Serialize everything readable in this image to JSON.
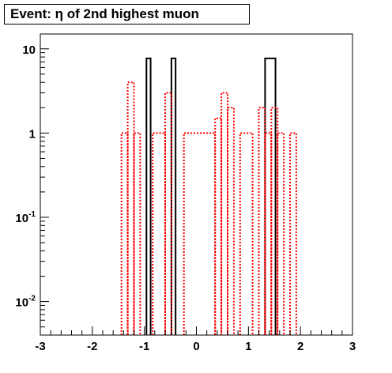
{
  "chart_data": {
    "type": "histogram",
    "title": "Event: η of 2nd highest muon",
    "xlabel": "",
    "ylabel": "",
    "xlim": [
      -3,
      3
    ],
    "ylim": [
      0.004,
      15
    ],
    "y_scale": "log",
    "grid": false,
    "x_ticks": [
      {
        "value": -3,
        "label": "-3"
      },
      {
        "value": -2,
        "label": "-2"
      },
      {
        "value": -1,
        "label": "-1"
      },
      {
        "value": 0,
        "label": "0"
      },
      {
        "value": 1,
        "label": "1"
      },
      {
        "value": 2,
        "label": "2"
      },
      {
        "value": 3,
        "label": "3"
      }
    ],
    "y_ticks": [
      {
        "value": 10,
        "base": "10",
        "exp": ""
      },
      {
        "value": 1,
        "base": "1",
        "exp": ""
      },
      {
        "value": 0.1,
        "base": "10",
        "exp": "-1"
      },
      {
        "value": 0.01,
        "base": "10",
        "exp": "-2"
      }
    ],
    "series": [
      {
        "color": "#000000",
        "style": "solid",
        "bins": [
          {
            "x0": -0.96,
            "x1": -0.88,
            "y": 7.7
          },
          {
            "x0": -0.48,
            "x1": -0.4,
            "y": 7.7
          },
          {
            "x0": 1.32,
            "x1": 1.52,
            "y": 7.7
          }
        ]
      },
      {
        "color": "#ff0000",
        "style": "dotted",
        "bins": [
          {
            "x0": -1.44,
            "x1": -1.32,
            "y": 1
          },
          {
            "x0": -1.32,
            "x1": -1.2,
            "y": 4
          },
          {
            "x0": -1.2,
            "x1": -1.08,
            "y": 1
          },
          {
            "x0": -0.84,
            "x1": -0.6,
            "y": 1
          },
          {
            "x0": -0.6,
            "x1": -0.48,
            "y": 3
          },
          {
            "x0": -0.24,
            "x1": 0.36,
            "y": 1
          },
          {
            "x0": 0.36,
            "x1": 0.48,
            "y": 1.5
          },
          {
            "x0": 0.48,
            "x1": 0.6,
            "y": 3
          },
          {
            "x0": 0.6,
            "x1": 0.72,
            "y": 2
          },
          {
            "x0": 0.84,
            "x1": 1.08,
            "y": 1
          },
          {
            "x0": 1.2,
            "x1": 1.32,
            "y": 2
          },
          {
            "x0": 1.32,
            "x1": 1.44,
            "y": 1
          },
          {
            "x0": 1.44,
            "x1": 1.56,
            "y": 2
          },
          {
            "x0": 1.56,
            "x1": 1.68,
            "y": 1
          },
          {
            "x0": 1.8,
            "x1": 1.92,
            "y": 1
          }
        ]
      }
    ]
  }
}
